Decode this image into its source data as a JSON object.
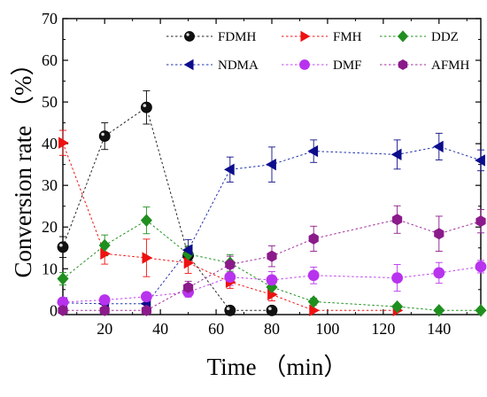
{
  "chart_data": {
    "type": "line",
    "title": "",
    "xlabel": "Time  （min）",
    "ylabel": "Conversion rate  （%）",
    "xlim": [
      5,
      155
    ],
    "ylim": [
      -1,
      70
    ],
    "x_ticks": [
      20,
      40,
      60,
      80,
      100,
      120,
      140
    ],
    "y_ticks": [
      0,
      10,
      20,
      30,
      40,
      50,
      60,
      70
    ],
    "grid": false,
    "legend_position": "top",
    "series": [
      {
        "name": "FDMH",
        "marker": "circle-black",
        "color": "#000000",
        "line_color": "#222222",
        "x": [
          5,
          20,
          35,
          50,
          65,
          80
        ],
        "y": [
          15.2,
          41.8,
          48.7,
          13.2,
          0,
          0
        ],
        "err": [
          2.5,
          3.2,
          4.0,
          2.0,
          0,
          0
        ]
      },
      {
        "name": "FMH",
        "marker": "triangle-right",
        "color": "#ee1111",
        "line_color": "#ee1111",
        "x": [
          5,
          20,
          35,
          50,
          65,
          80,
          95,
          125
        ],
        "y": [
          40.2,
          13.6,
          12.6,
          11.4,
          6.8,
          3.8,
          0,
          0
        ],
        "err": [
          3.0,
          2.5,
          4.5,
          2.5,
          1.5,
          1.5,
          0,
          0
        ]
      },
      {
        "name": "DDZ",
        "marker": "diamond",
        "color": "#1f8f1f",
        "line_color": "#1f8f1f",
        "x": [
          5,
          20,
          35,
          50,
          65,
          80,
          95,
          125,
          140,
          155
        ],
        "y": [
          7.6,
          15.6,
          21.6,
          13.5,
          11.4,
          5.6,
          2.1,
          0.9,
          0,
          0
        ],
        "err": [
          1.5,
          2.5,
          3.2,
          2.0,
          2.0,
          1.5,
          0.8,
          0.5,
          0,
          0
        ]
      },
      {
        "name": "NDMA",
        "marker": "triangle-left",
        "color": "#0d0d8c",
        "line_color": "#2233aa",
        "x": [
          5,
          20,
          35,
          50,
          65,
          80,
          95,
          125,
          140,
          155
        ],
        "y": [
          1.8,
          1.6,
          1.6,
          14.5,
          33.8,
          35.0,
          38.2,
          37.4,
          39.3,
          36.0
        ],
        "err": [
          0.8,
          0.8,
          0.8,
          2.5,
          3.0,
          4.2,
          2.7,
          3.5,
          3.2,
          2.5
        ]
      },
      {
        "name": "DMF",
        "marker": "circle",
        "color": "#b833ee",
        "line_color": "#c044ee",
        "x": [
          5,
          20,
          35,
          50,
          65,
          80,
          95,
          125,
          140,
          155
        ],
        "y": [
          2.0,
          2.5,
          3.3,
          4.4,
          8.0,
          7.3,
          8.4,
          7.8,
          9.0,
          10.5
        ],
        "err": [
          0.8,
          0.8,
          1.0,
          1.2,
          2.0,
          2.0,
          2.0,
          3.2,
          2.5,
          1.5
        ]
      },
      {
        "name": "AFMH",
        "marker": "hexagon",
        "color": "#8b1a8b",
        "line_color": "#a0309c",
        "x": [
          5,
          20,
          35,
          50,
          65,
          80,
          95,
          125,
          140,
          155
        ],
        "y": [
          0,
          0,
          0,
          5.5,
          11.0,
          13.0,
          17.2,
          21.8,
          18.4,
          21.4
        ],
        "err": [
          0,
          0,
          0,
          1.5,
          2.0,
          2.5,
          3.0,
          3.3,
          4.2,
          2.8
        ]
      }
    ]
  }
}
